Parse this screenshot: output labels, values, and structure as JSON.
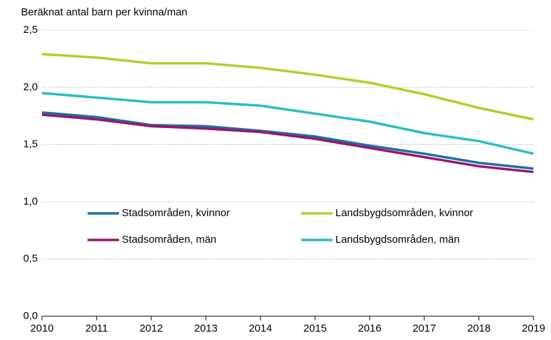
{
  "chart_data": {
    "type": "line",
    "y_axis_label": "Beräknat antal barn per kvinna/man",
    "x": [
      2010,
      2011,
      2012,
      2013,
      2014,
      2015,
      2016,
      2017,
      2018,
      2019
    ],
    "xlim": [
      2010,
      2019
    ],
    "xticks": [
      2010,
      2011,
      2012,
      2013,
      2014,
      2015,
      2016,
      2017,
      2018,
      2019
    ],
    "ylim": [
      0,
      2.5
    ],
    "yticks": [
      {
        "value": 0,
        "label": "0,0"
      },
      {
        "value": 0.5,
        "label": "0,5"
      },
      {
        "value": 1,
        "label": "1,0"
      },
      {
        "value": 1.5,
        "label": "1,5"
      },
      {
        "value": 2,
        "label": "2,0"
      },
      {
        "value": 2.5,
        "label": "2,5"
      }
    ],
    "grid": true,
    "series": [
      {
        "name": "Stadsområden, kvinnor",
        "color": "#1f6f9f",
        "values": [
          1.78,
          1.74,
          1.67,
          1.66,
          1.62,
          1.57,
          1.49,
          1.42,
          1.34,
          1.29
        ]
      },
      {
        "name": "Landsbygdsområden, kvinnor",
        "color": "#b6cc2c",
        "values": [
          2.29,
          2.26,
          2.21,
          2.21,
          2.17,
          2.11,
          2.04,
          1.94,
          1.82,
          1.72
        ]
      },
      {
        "name": "Stadsområden, män",
        "color": "#98176e",
        "values": [
          1.76,
          1.72,
          1.66,
          1.64,
          1.61,
          1.55,
          1.47,
          1.39,
          1.31,
          1.26
        ]
      },
      {
        "name": "Landsbygdsområden, män",
        "color": "#2dbdbd",
        "values": [
          1.95,
          1.91,
          1.87,
          1.87,
          1.84,
          1.77,
          1.7,
          1.6,
          1.53,
          1.42
        ]
      }
    ]
  }
}
